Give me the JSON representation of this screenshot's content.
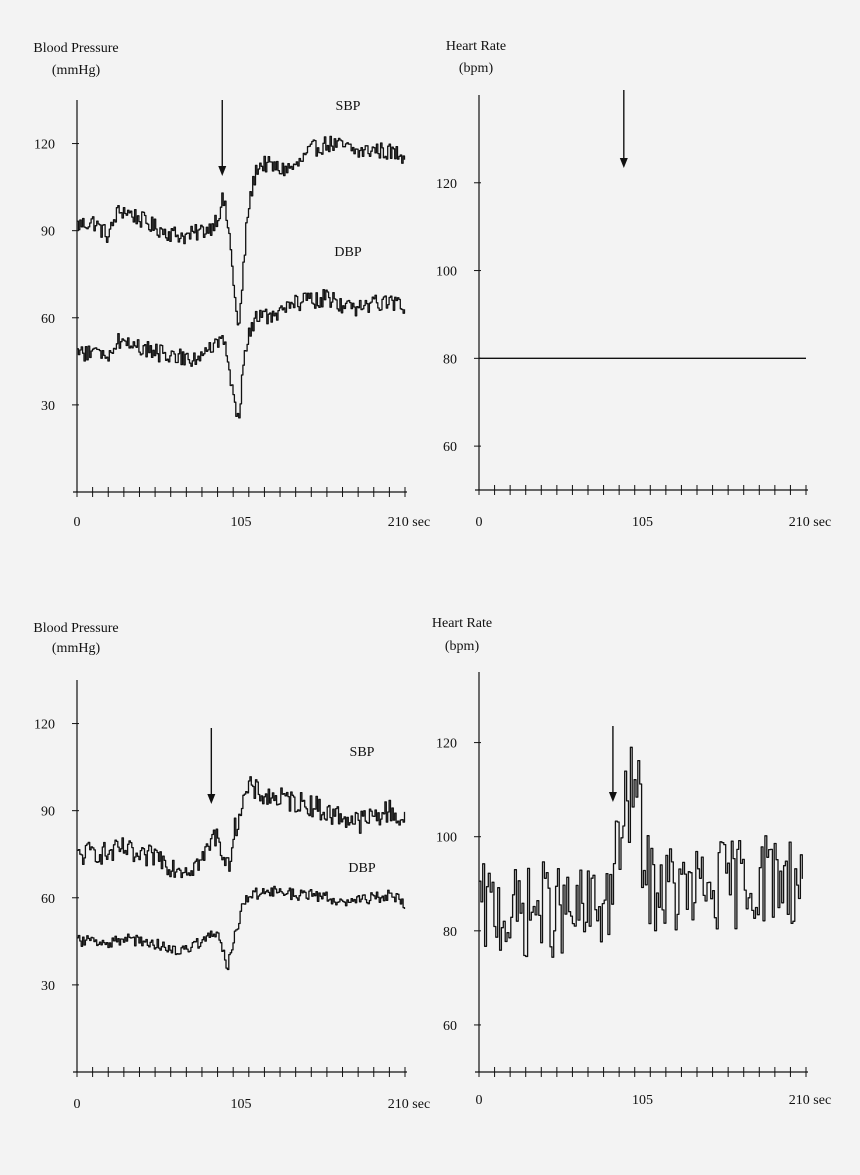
{
  "colors": {
    "background": "#f3f3f3",
    "ink": "#111111"
  },
  "chart_data": [
    {
      "id": "top-bp",
      "type": "line",
      "ylabel_lines": [
        "Blood Pressure",
        "(mmHg)"
      ],
      "x_unit": "sec",
      "x_ticks": [
        0,
        105,
        210
      ],
      "x_tick_labels": [
        "0",
        "105",
        "210 sec"
      ],
      "y_ticks": [
        30,
        60,
        90,
        120
      ],
      "xlim": [
        0,
        210
      ],
      "ylim": [
        0,
        135
      ],
      "arrow_x": 93,
      "series": [
        {
          "name": "SBP",
          "x": [
            0,
            10,
            20,
            25,
            30,
            40,
            50,
            60,
            70,
            80,
            85,
            90,
            93,
            95,
            97,
            100,
            103,
            105,
            108,
            110,
            115,
            120,
            130,
            140,
            150,
            160,
            170,
            180,
            190,
            200,
            210
          ],
          "y": [
            92,
            93,
            88,
            96,
            97,
            94,
            91,
            89,
            88,
            90,
            91,
            95,
            101,
            96,
            89,
            72,
            54,
            68,
            90,
            100,
            112,
            113,
            111,
            112,
            118,
            120,
            119,
            117,
            118,
            117,
            116
          ]
        },
        {
          "name": "DBP",
          "x": [
            0,
            10,
            20,
            25,
            30,
            40,
            50,
            60,
            70,
            80,
            85,
            90,
            93,
            95,
            97,
            100,
            103,
            105,
            108,
            110,
            115,
            120,
            130,
            140,
            150,
            160,
            170,
            180,
            190,
            200,
            210
          ],
          "y": [
            48,
            48,
            47,
            52,
            52,
            50,
            48,
            47,
            46,
            47,
            49,
            52,
            51,
            48,
            42,
            34,
            24,
            36,
            50,
            55,
            61,
            60,
            62,
            65,
            66,
            67,
            64,
            63,
            65,
            66,
            64
          ]
        }
      ]
    },
    {
      "id": "top-hr",
      "type": "line",
      "ylabel_lines": [
        "Heart Rate",
        "(bpm)"
      ],
      "x_unit": "sec",
      "x_ticks": [
        0,
        105,
        210
      ],
      "x_tick_labels": [
        "0",
        "105",
        "210 sec"
      ],
      "y_ticks": [
        60,
        80,
        100,
        120
      ],
      "xlim": [
        0,
        210
      ],
      "ylim": [
        50,
        140
      ],
      "arrow_x": 93,
      "series": [
        {
          "name": "",
          "x": [
            0,
            210
          ],
          "y": [
            80,
            80
          ]
        }
      ]
    },
    {
      "id": "bottom-bp",
      "type": "line",
      "ylabel_lines": [
        "Blood Pressure",
        "(mmHg)"
      ],
      "x_unit": "sec",
      "x_ticks": [
        0,
        105,
        210
      ],
      "x_tick_labels": [
        "0",
        "105",
        "210 sec"
      ],
      "y_ticks": [
        30,
        60,
        90,
        120
      ],
      "xlim": [
        0,
        210
      ],
      "ylim": [
        0,
        135
      ],
      "arrow_x": 86,
      "series": [
        {
          "name": "SBP",
          "x": [
            0,
            10,
            20,
            30,
            40,
            50,
            60,
            70,
            80,
            86,
            90,
            93,
            96,
            100,
            105,
            110,
            120,
            130,
            140,
            150,
            160,
            170,
            180,
            190,
            200,
            210
          ],
          "y": [
            74,
            76,
            75,
            77,
            73,
            75,
            71,
            70,
            73,
            80,
            82,
            75,
            69,
            82,
            92,
            98,
            95,
            94,
            93,
            92,
            89,
            88,
            86,
            88,
            90,
            86
          ],
          "noise": 4
        },
        {
          "name": "DBP",
          "x": [
            0,
            10,
            20,
            30,
            40,
            50,
            60,
            70,
            80,
            86,
            90,
            93,
            96,
            100,
            105,
            110,
            120,
            130,
            140,
            150,
            160,
            170,
            180,
            190,
            200,
            210
          ],
          "y": [
            45,
            46,
            44,
            46,
            45,
            44,
            42,
            43,
            45,
            47,
            49,
            42,
            36,
            45,
            56,
            61,
            62,
            62,
            61,
            61,
            60,
            59,
            59,
            60,
            61,
            58
          ],
          "noise": 2
        }
      ]
    },
    {
      "id": "bottom-hr",
      "type": "line",
      "ylabel_lines": [
        "Heart Rate",
        "(bpm)"
      ],
      "x_unit": "sec",
      "x_ticks": [
        0,
        105,
        210
      ],
      "x_tick_labels": [
        "0",
        "105",
        "210 sec"
      ],
      "y_ticks": [
        60,
        80,
        100,
        120
      ],
      "xlim": [
        0,
        210
      ],
      "ylim": [
        50,
        135
      ],
      "arrow_x": 86,
      "series": [
        {
          "name": "",
          "x": [
            0,
            10,
            20,
            30,
            40,
            50,
            60,
            70,
            80,
            85,
            88,
            92,
            95,
            98,
            101,
            104,
            107,
            110,
            120,
            130,
            140,
            150,
            160,
            170,
            180,
            190,
            200,
            208
          ],
          "y": [
            84,
            85,
            83,
            84,
            85,
            84,
            83,
            84,
            86,
            88,
            96,
            102,
            106,
            111,
            110,
            100,
            91,
            90,
            89,
            88,
            88,
            89,
            90,
            91,
            91,
            92,
            91,
            90
          ],
          "noise": 10
        }
      ]
    }
  ]
}
